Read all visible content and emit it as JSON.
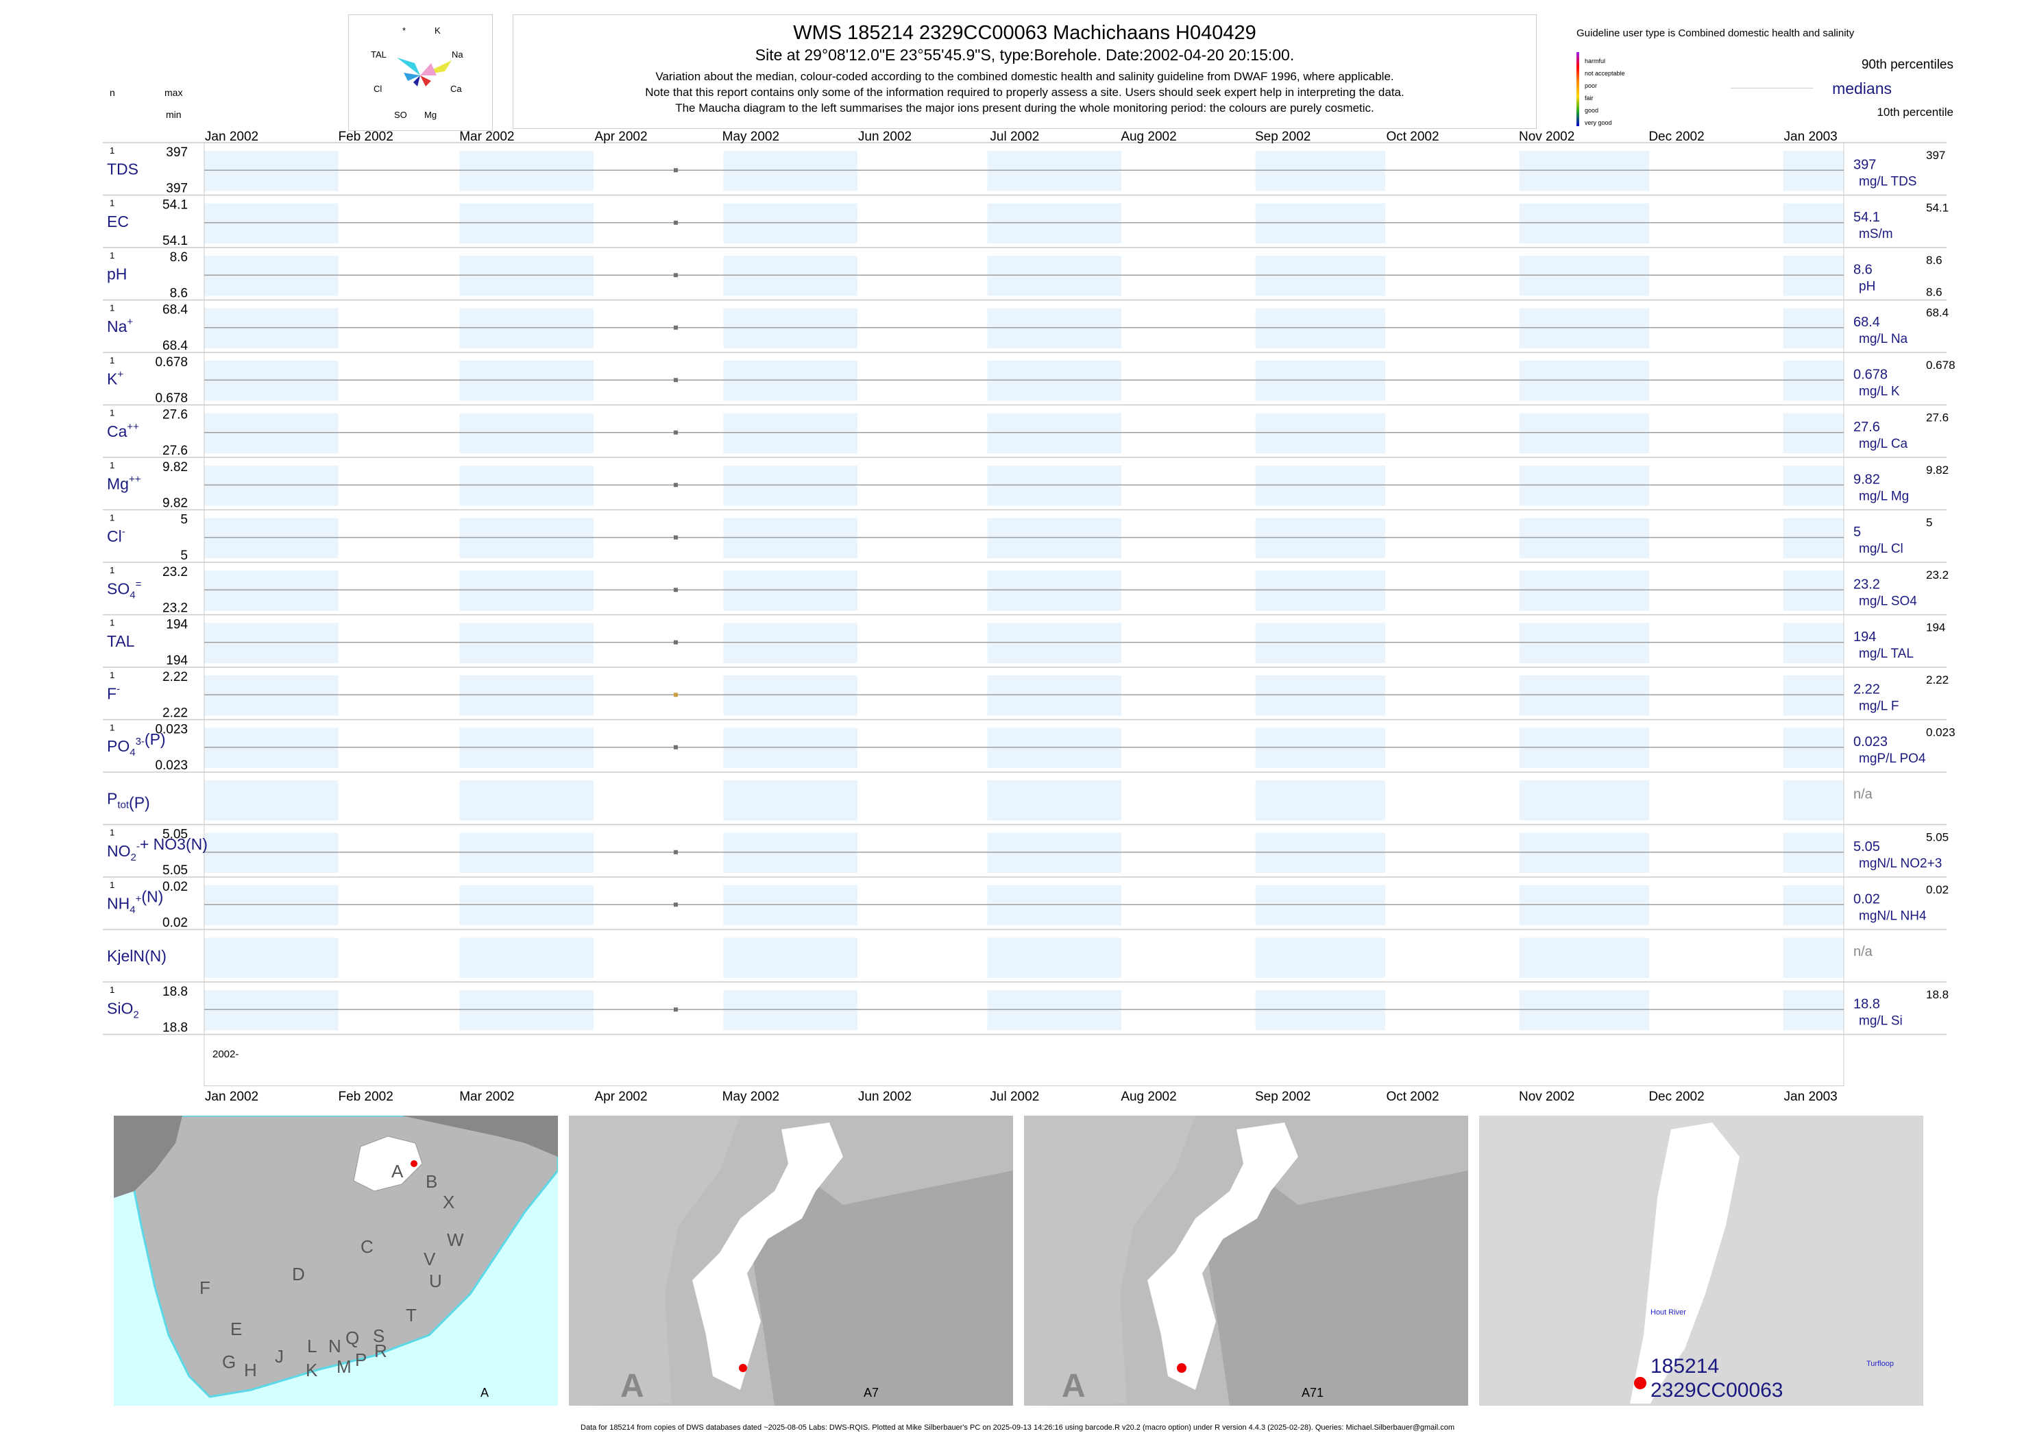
{
  "header": {
    "title": "WMS 185214 2329CC00063 Machichaans H040429",
    "subtitle": "Site at 29°08'12.0\"E 23°55'45.9\"S, type:Borehole. Date:2002-04-20 20:15:00.",
    "line1": "Variation about the median,  colour-coded according to the combined domestic health and salinity guideline from DWAF 1996, where applicable.",
    "line2": "Note that this report contains only some of the information required to properly assess a site. Users should seek expert help in interpreting the data.",
    "line3": "The Maucha diagram to the left summarises the major ions present during the whole monitoring period: the colours are purely cosmetic."
  },
  "maucha": {
    "labels": {
      "star": "*",
      "k": "K",
      "tal": "TAL",
      "na": "Na",
      "cl": "Cl",
      "ca": "Ca",
      "so4": "SO",
      "mg": "Mg"
    }
  },
  "left_header": {
    "n": "n",
    "max": "max",
    "min": "min"
  },
  "legend": {
    "title": "Guideline user type is Combined domestic health and salinity",
    "classes": [
      "harmful",
      "not acceptable",
      "poor",
      "fair",
      "good",
      "very good"
    ],
    "colors": {
      "harmful": "#a020f0",
      "not_acceptable": "#ff0000",
      "poor": "#ff8c00",
      "fair": "#ffd700",
      "good": "#22aa22",
      "very_good": "#0000cd"
    },
    "p90": "90th percentiles",
    "medians": "medians",
    "p10": "10th percentile"
  },
  "chart_data": {
    "type": "scatter",
    "x_range": [
      "2002-01-01",
      "2003-01-15"
    ],
    "month_labels": [
      "Jan 2002",
      "Feb 2002",
      "Mar 2002",
      "Apr 2002",
      "May 2002",
      "Jun 2002",
      "Jul 2002",
      "Aug 2002",
      "Sep 2002",
      "Oct 2002",
      "Nov 2002",
      "Dec 2002",
      "Jan 2003"
    ],
    "year_label": "2002-",
    "sample_date": "2002-04-20",
    "rows": [
      {
        "label": "TDS",
        "n": "1",
        "max": "397",
        "min": "397",
        "median": "397",
        "unit": "mg/L TDS",
        "p90": "397",
        "p10": "",
        "value": 397,
        "color": "#707070"
      },
      {
        "label": "EC",
        "n": "1",
        "max": "54.1",
        "min": "54.1",
        "median": "54.1",
        "unit": "mS/m",
        "p90": "54.1",
        "p10": "",
        "value": 54.1,
        "color": "#707070"
      },
      {
        "label": "pH",
        "n": "1",
        "max": "8.6",
        "min": "8.6",
        "median": "8.6",
        "unit": "pH",
        "p90": "8.6",
        "p10": "8.6",
        "value": 8.6,
        "color": "#707070"
      },
      {
        "label": "Na",
        "sup": "+",
        "n": "1",
        "max": "68.4",
        "min": "68.4",
        "median": "68.4",
        "unit": "mg/L Na",
        "p90": "68.4",
        "p10": "",
        "value": 68.4,
        "color": "#707070"
      },
      {
        "label": "K",
        "sup": "+",
        "n": "1",
        "max": "0.678",
        "min": "0.678",
        "median": "0.678",
        "unit": "mg/L K",
        "p90": "0.678",
        "p10": "",
        "value": 0.678,
        "color": "#707070"
      },
      {
        "label": "Ca",
        "sup": "++",
        "n": "1",
        "max": "27.6",
        "min": "27.6",
        "median": "27.6",
        "unit": "mg/L Ca",
        "p90": "27.6",
        "p10": "",
        "value": 27.6,
        "color": "#707070"
      },
      {
        "label": "Mg",
        "sup": "++",
        "n": "1",
        "max": "9.82",
        "min": "9.82",
        "median": "9.82",
        "unit": "mg/L Mg",
        "p90": "9.82",
        "p10": "",
        "value": 9.82,
        "color": "#707070"
      },
      {
        "label": "Cl",
        "sup": "-",
        "n": "1",
        "max": "5",
        "min": "5",
        "median": "5",
        "unit": "mg/L Cl",
        "p90": "5",
        "p10": "",
        "value": 5,
        "color": "#707070"
      },
      {
        "label": "SO",
        "sub": "4",
        "sup": "=",
        "n": "1",
        "max": "23.2",
        "min": "23.2",
        "median": "23.2",
        "unit": "mg/L SO4",
        "p90": "23.2",
        "p10": "",
        "value": 23.2,
        "color": "#707070"
      },
      {
        "label": "TAL",
        "n": "1",
        "max": "194",
        "min": "194",
        "median": "194",
        "unit": "mg/L TAL",
        "p90": "194",
        "p10": "",
        "value": 194,
        "color": "#707070"
      },
      {
        "label": "F",
        "sup": "-",
        "n": "1",
        "max": "2.22",
        "min": "2.22",
        "median": "2.22",
        "unit": "mg/L F",
        "p90": "2.22",
        "p10": "",
        "value": 2.22,
        "color": "#c8a040"
      },
      {
        "label": "PO",
        "sub": "4",
        "sup": "3-",
        "suffix": "(P)",
        "n": "1",
        "max": "0.023",
        "min": "0.023",
        "median": "0.023",
        "unit": "mgP/L PO4",
        "p90": "0.023",
        "p10": "",
        "value": 0.023,
        "color": "#707070"
      },
      {
        "label": "P",
        "sub": "tot",
        "suffix": "(P)",
        "n": "",
        "max": "",
        "min": "",
        "median": "n/a",
        "unit": "",
        "p90": "",
        "p10": "",
        "value": null,
        "color": "#707070"
      },
      {
        "label": "NO",
        "sub": "2",
        "sup": "-",
        "suffix": "+ NO3(N)",
        "n": "1",
        "max": "5.05",
        "min": "5.05",
        "median": "5.05",
        "unit": "mgN/L NO2+3",
        "p90": "5.05",
        "p10": "",
        "value": 5.05,
        "color": "#707070"
      },
      {
        "label": "NH",
        "sub": "4",
        "sup": "+",
        "suffix": "(N)",
        "n": "1",
        "max": "0.02",
        "min": "0.02",
        "median": "0.02",
        "unit": "mgN/L NH4",
        "p90": "0.02",
        "p10": "",
        "value": 0.02,
        "color": "#707070"
      },
      {
        "label": "KjelN(N)",
        "n": "",
        "max": "",
        "min": "",
        "median": "n/a",
        "unit": "",
        "p90": "",
        "p10": "",
        "value": null,
        "color": "#707070"
      },
      {
        "label": "SiO",
        "sub": "2",
        "n": "1",
        "max": "18.8",
        "min": "18.8",
        "median": "18.8",
        "unit": "mg/L Si",
        "p90": "18.8",
        "p10": "",
        "value": 18.8,
        "color": "#707070"
      }
    ]
  },
  "maps": {
    "map1": {
      "label": "A",
      "regions": [
        "A",
        "B",
        "X",
        "W",
        "C",
        "D",
        "V",
        "U",
        "T",
        "F",
        "E",
        "G",
        "H",
        "J",
        "K",
        "L",
        "N",
        "M",
        "Q",
        "P",
        "S",
        "R"
      ]
    },
    "map2": {
      "label": "A7",
      "corner": "A"
    },
    "map3": {
      "label": "A71",
      "corner": "A"
    },
    "map4": {
      "site_id": "185214",
      "site_code": "2329CC00063",
      "river": "Hout River",
      "place": "Turfloop",
      "extra": "00063"
    }
  },
  "footer": "Data for 185214 from copies of DWS databases dated ~2025-08-05 Labs: DWS-RQIS. Plotted at Mike Silberbauer's PC on 2025-09-13 14:26:16 using barcode.R v20.2 (macro option) under R version 4.4.3 (2025-02-28). Queries: Michael.Silberbauer@gmail.com"
}
